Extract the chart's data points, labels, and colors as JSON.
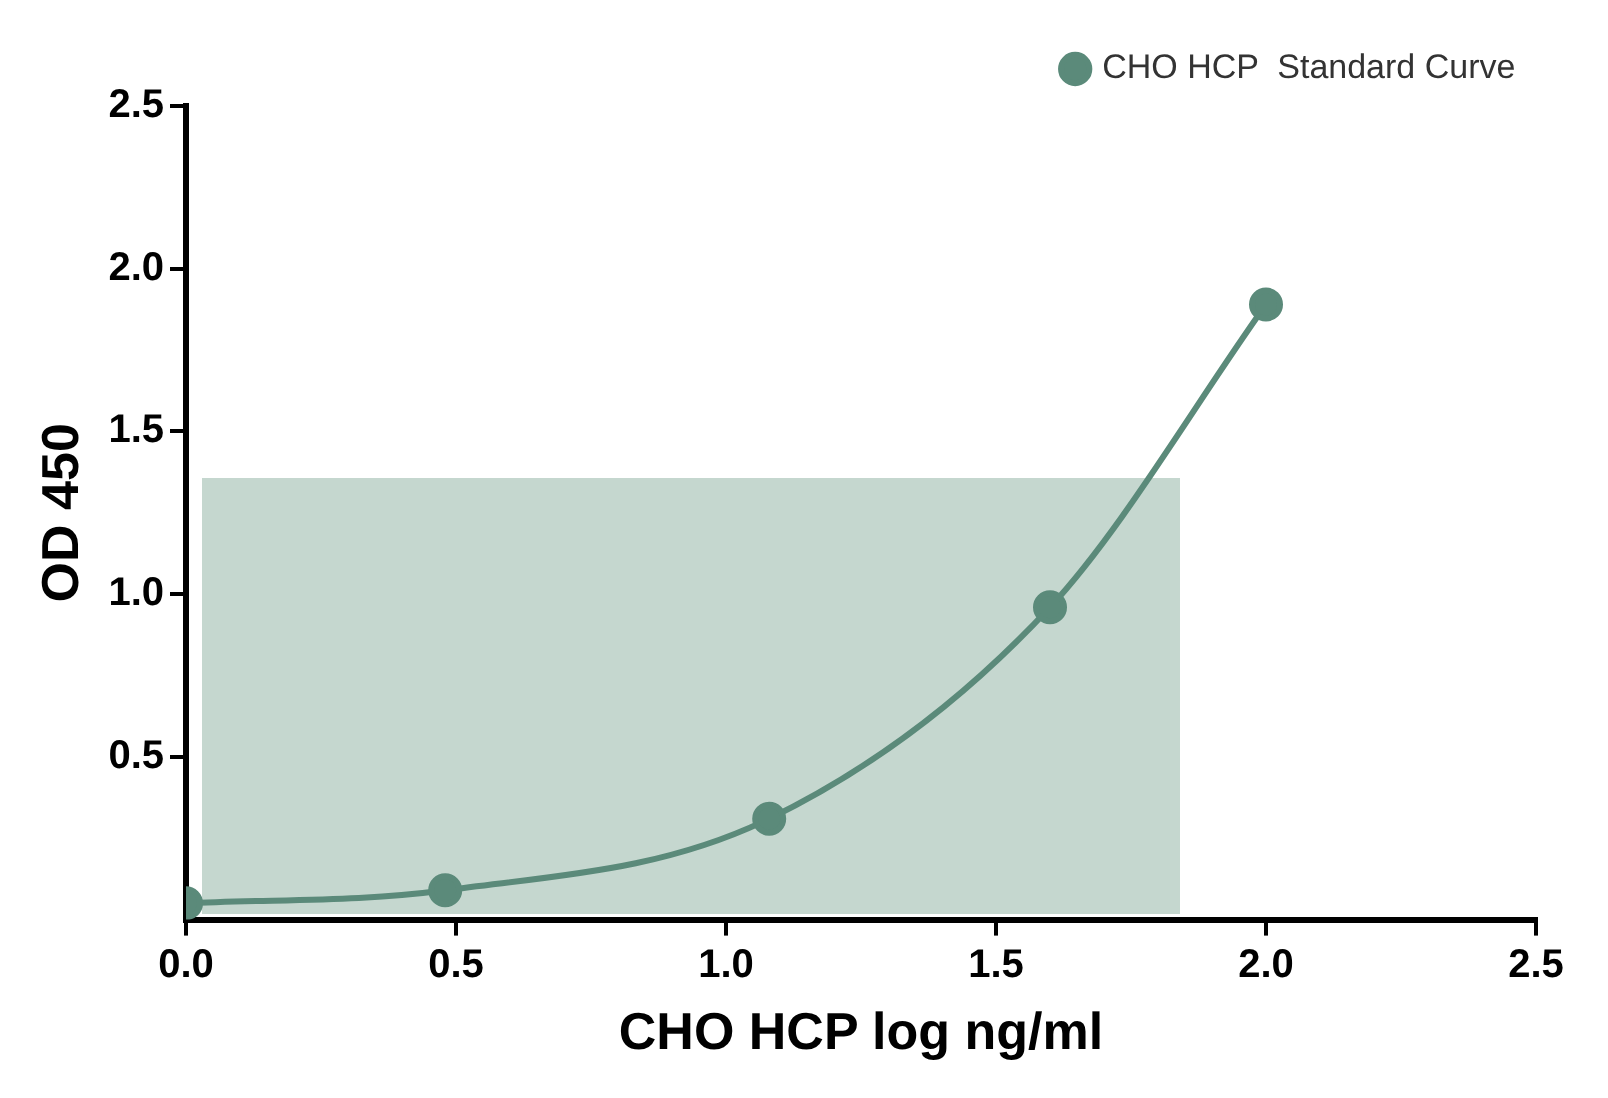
{
  "chart_data": {
    "type": "line",
    "xlabel": "CHO HCP log ng/ml",
    "ylabel": "OD 450",
    "x": [
      0.0,
      0.48,
      1.08,
      1.6,
      2.0
    ],
    "series": [
      {
        "name": "CHO HCP  Standard Curve",
        "color": "#5b8a7a",
        "values": [
          0.05,
          0.09,
          0.31,
          0.96,
          1.89
        ]
      }
    ],
    "xlim": [
      0,
      2.5
    ],
    "xticks": [
      {
        "value": 0,
        "label": "0.0"
      },
      0.5,
      {
        "value": 1,
        "label": "1.0"
      },
      1.5,
      {
        "value": 2,
        "label": "2.0"
      },
      2.5
    ],
    "ylim": [
      0,
      2.5
    ],
    "yticks": [
      0.5,
      {
        "value": 1,
        "label": "1.0"
      },
      1.5,
      {
        "value": 2,
        "label": "2.0"
      },
      2.5
    ],
    "grid": false,
    "legend": "top right",
    "marker": "circle",
    "line_style": "solid"
  }
}
